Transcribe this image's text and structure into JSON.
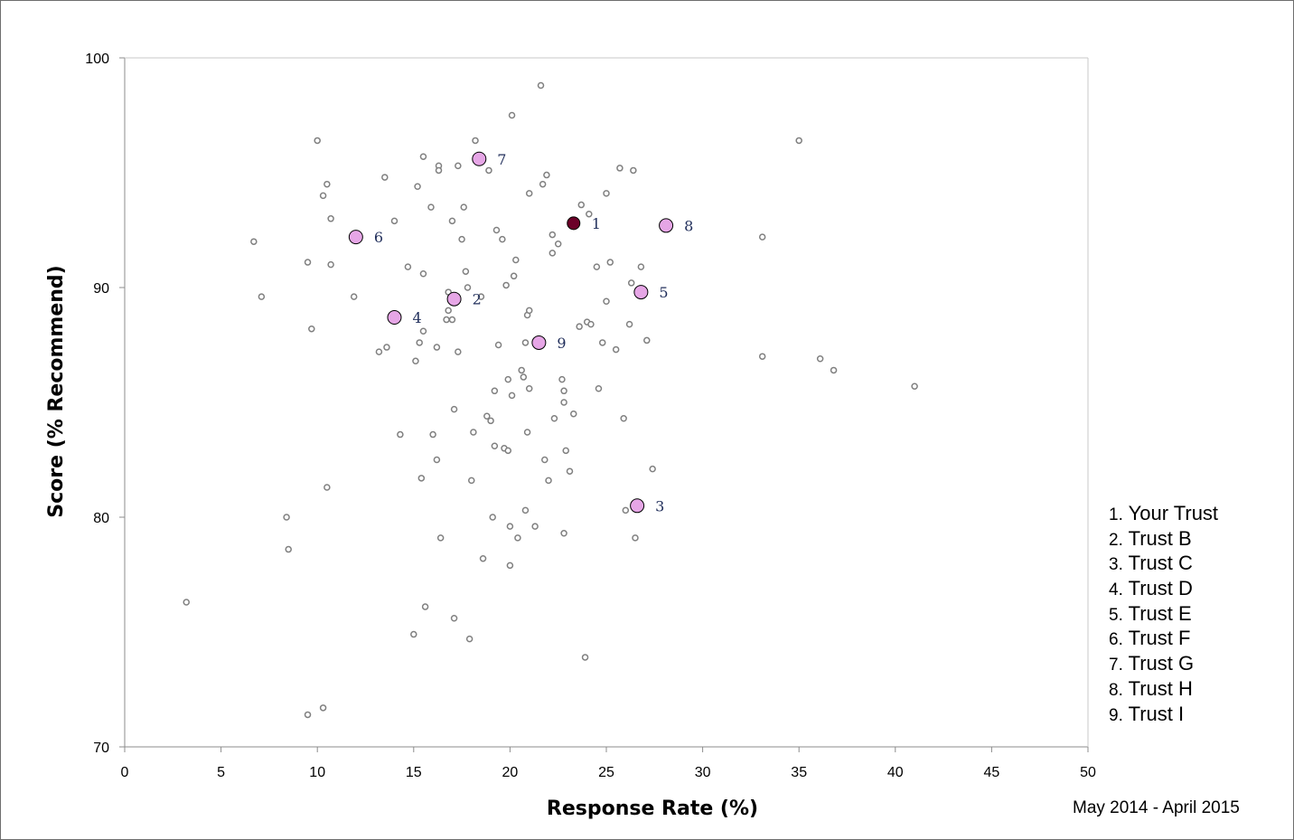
{
  "chart_data": {
    "type": "scatter",
    "xlabel": "Response Rate (%)",
    "ylabel": "Score (% Recommend)",
    "xlim": [
      0,
      50
    ],
    "ylim": [
      70,
      100
    ],
    "xticks": [
      0,
      5,
      10,
      15,
      20,
      25,
      30,
      35,
      40,
      45,
      50
    ],
    "yticks": [
      70,
      80,
      90,
      100
    ],
    "grid": false,
    "period_note": "May 2014 - April 2015",
    "colors": {
      "other": "#ffffff",
      "other_stroke": "#808080",
      "your_trust": "#6b0028",
      "peer": "#e6a6e6",
      "label": "#1f2d5a"
    },
    "legend": [
      {
        "num": "1.",
        "name": "Your Trust"
      },
      {
        "num": "2.",
        "name": "Trust B"
      },
      {
        "num": "3.",
        "name": "Trust C"
      },
      {
        "num": "4.",
        "name": "Trust D"
      },
      {
        "num": "5.",
        "name": "Trust E"
      },
      {
        "num": "6.",
        "name": "Trust F"
      },
      {
        "num": "7.",
        "name": "Trust G"
      },
      {
        "num": "8.",
        "name": "Trust H"
      },
      {
        "num": "9.",
        "name": "Trust I"
      }
    ],
    "highlighted": [
      {
        "label": "1",
        "x": 23.3,
        "y": 92.8,
        "kind": "your_trust"
      },
      {
        "label": "2",
        "x": 17.1,
        "y": 89.5,
        "kind": "peer"
      },
      {
        "label": "3",
        "x": 26.6,
        "y": 80.5,
        "kind": "peer"
      },
      {
        "label": "4",
        "x": 14.0,
        "y": 88.7,
        "kind": "peer"
      },
      {
        "label": "5",
        "x": 26.8,
        "y": 89.8,
        "kind": "peer"
      },
      {
        "label": "6",
        "x": 12.0,
        "y": 92.2,
        "kind": "peer"
      },
      {
        "label": "7",
        "x": 18.4,
        "y": 95.6,
        "kind": "peer"
      },
      {
        "label": "8",
        "x": 28.1,
        "y": 92.7,
        "kind": "peer"
      },
      {
        "label": "9",
        "x": 21.5,
        "y": 87.6,
        "kind": "peer"
      }
    ],
    "others": [
      [
        3.2,
        76.3
      ],
      [
        6.7,
        92.0
      ],
      [
        7.1,
        89.6
      ],
      [
        8.4,
        80.0
      ],
      [
        8.5,
        78.6
      ],
      [
        9.5,
        71.4
      ],
      [
        9.5,
        91.1
      ],
      [
        9.7,
        88.2
      ],
      [
        10.0,
        96.4
      ],
      [
        10.3,
        71.7
      ],
      [
        10.3,
        94.0
      ],
      [
        10.5,
        94.5
      ],
      [
        10.5,
        81.3
      ],
      [
        10.7,
        93.0
      ],
      [
        10.7,
        91.0
      ],
      [
        11.9,
        89.6
      ],
      [
        13.2,
        87.2
      ],
      [
        13.5,
        94.8
      ],
      [
        13.6,
        87.4
      ],
      [
        14.0,
        92.9
      ],
      [
        14.3,
        83.6
      ],
      [
        14.7,
        90.9
      ],
      [
        15.0,
        74.9
      ],
      [
        15.1,
        86.8
      ],
      [
        15.2,
        94.4
      ],
      [
        15.3,
        87.6
      ],
      [
        15.4,
        81.7
      ],
      [
        15.5,
        95.7
      ],
      [
        15.5,
        90.6
      ],
      [
        15.5,
        88.1
      ],
      [
        15.6,
        76.1
      ],
      [
        15.9,
        93.5
      ],
      [
        16.0,
        83.6
      ],
      [
        16.2,
        82.5
      ],
      [
        16.2,
        87.4
      ],
      [
        16.3,
        95.3
      ],
      [
        16.3,
        95.1
      ],
      [
        16.4,
        79.1
      ],
      [
        16.7,
        88.6
      ],
      [
        16.8,
        89.0
      ],
      [
        16.8,
        89.8
      ],
      [
        17.0,
        92.9
      ],
      [
        17.0,
        88.6
      ],
      [
        17.1,
        84.7
      ],
      [
        17.1,
        75.6
      ],
      [
        17.3,
        95.3
      ],
      [
        17.3,
        87.2
      ],
      [
        17.5,
        92.1
      ],
      [
        17.6,
        93.5
      ],
      [
        17.7,
        90.7
      ],
      [
        17.8,
        90.0
      ],
      [
        17.9,
        74.7
      ],
      [
        18.0,
        81.6
      ],
      [
        18.1,
        83.7
      ],
      [
        18.2,
        96.4
      ],
      [
        18.5,
        89.6
      ],
      [
        18.6,
        78.2
      ],
      [
        18.8,
        84.4
      ],
      [
        18.9,
        95.1
      ],
      [
        19.0,
        84.2
      ],
      [
        19.1,
        80.0
      ],
      [
        19.2,
        85.5
      ],
      [
        19.2,
        83.1
      ],
      [
        19.3,
        92.5
      ],
      [
        19.4,
        87.5
      ],
      [
        19.6,
        92.1
      ],
      [
        19.7,
        83.0
      ],
      [
        19.8,
        90.1
      ],
      [
        19.9,
        86.0
      ],
      [
        19.9,
        82.9
      ],
      [
        20.0,
        79.6
      ],
      [
        20.0,
        77.9
      ],
      [
        20.1,
        97.5
      ],
      [
        20.1,
        85.3
      ],
      [
        20.2,
        90.5
      ],
      [
        20.3,
        91.2
      ],
      [
        20.4,
        79.1
      ],
      [
        20.6,
        86.4
      ],
      [
        20.7,
        86.1
      ],
      [
        20.8,
        87.6
      ],
      [
        20.8,
        80.3
      ],
      [
        20.9,
        88.8
      ],
      [
        20.9,
        83.7
      ],
      [
        21.0,
        89.0
      ],
      [
        21.0,
        85.6
      ],
      [
        21.0,
        94.1
      ],
      [
        21.3,
        79.6
      ],
      [
        21.6,
        98.8
      ],
      [
        21.7,
        94.5
      ],
      [
        21.8,
        82.5
      ],
      [
        21.9,
        94.9
      ],
      [
        22.0,
        81.6
      ],
      [
        22.2,
        92.3
      ],
      [
        22.2,
        91.5
      ],
      [
        22.3,
        84.3
      ],
      [
        22.5,
        91.9
      ],
      [
        22.7,
        86.0
      ],
      [
        22.8,
        85.5
      ],
      [
        22.8,
        85.0
      ],
      [
        22.8,
        79.3
      ],
      [
        22.9,
        82.9
      ],
      [
        23.1,
        82.0
      ],
      [
        23.3,
        84.5
      ],
      [
        23.6,
        88.3
      ],
      [
        23.7,
        93.6
      ],
      [
        23.9,
        73.9
      ],
      [
        24.0,
        88.5
      ],
      [
        24.1,
        93.2
      ],
      [
        24.2,
        88.4
      ],
      [
        24.5,
        90.9
      ],
      [
        24.6,
        85.6
      ],
      [
        24.8,
        87.6
      ],
      [
        25.0,
        89.4
      ],
      [
        25.0,
        94.1
      ],
      [
        25.2,
        91.1
      ],
      [
        25.5,
        87.3
      ],
      [
        25.7,
        95.2
      ],
      [
        25.9,
        84.3
      ],
      [
        26.0,
        80.3
      ],
      [
        26.2,
        88.4
      ],
      [
        26.3,
        90.2
      ],
      [
        26.4,
        95.1
      ],
      [
        26.5,
        79.1
      ],
      [
        26.8,
        90.9
      ],
      [
        27.1,
        87.7
      ],
      [
        27.4,
        82.1
      ],
      [
        33.1,
        87.0
      ],
      [
        33.1,
        92.2
      ],
      [
        35.0,
        96.4
      ],
      [
        36.1,
        86.9
      ],
      [
        36.8,
        86.4
      ],
      [
        41.0,
        85.7
      ]
    ]
  }
}
